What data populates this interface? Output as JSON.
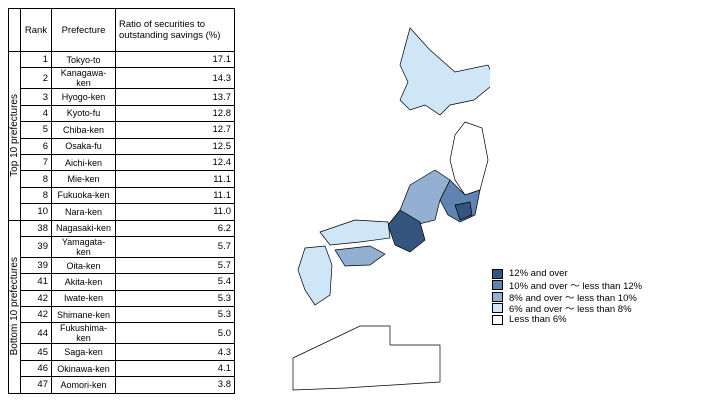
{
  "table": {
    "headers": [
      "Rank",
      "Prefecture",
      "Ratio of securities to outstanding savings (%)"
    ],
    "groups": [
      {
        "label": "Top 10 prefectures",
        "rows": [
          [
            1,
            "Tokyo-to",
            "17.1"
          ],
          [
            2,
            "Kanagawa-ken",
            "14.3"
          ],
          [
            3,
            "Hyogo-ken",
            "13.7"
          ],
          [
            4,
            "Kyoto-fu",
            "12.8"
          ],
          [
            5,
            "Chiba-ken",
            "12.7"
          ],
          [
            6,
            "Osaka-fu",
            "12.5"
          ],
          [
            7,
            "Aichi-ken",
            "12.4"
          ],
          [
            8,
            "Mie-ken",
            "11.1"
          ],
          [
            8,
            "Fukuoka-ken",
            "11.1"
          ],
          [
            10,
            "Nara-ken",
            "11.0"
          ]
        ]
      },
      {
        "label": "Bottom 10 prefectures",
        "rows": [
          [
            38,
            "Nagasaki-ken",
            "6.2"
          ],
          [
            39,
            "Yamagata-ken",
            "5.7"
          ],
          [
            39,
            "Oita-ken",
            "5.7"
          ],
          [
            41,
            "Akita-ken",
            "5.4"
          ],
          [
            42,
            "Iwate-ken",
            "5.3"
          ],
          [
            42,
            "Shimane-ken",
            "5.3"
          ],
          [
            44,
            "Fukushima-ken",
            "5.0"
          ],
          [
            45,
            "Saga-ken",
            "4.3"
          ],
          [
            46,
            "Okinawa-ken",
            "4.1"
          ],
          [
            47,
            "Aomori-ken",
            "3.8"
          ]
        ]
      }
    ]
  },
  "legend": [
    {
      "label": "12% and over",
      "color": "#34557e"
    },
    {
      "label": "10% and over ～ less than 12%",
      "color": "#5f84b3"
    },
    {
      "label": "8% and over ～ less than 10%",
      "color": "#93afd2"
    },
    {
      "label": "6% and over ～ less than 8%",
      "color": "#cfe6f6"
    },
    {
      "label": "Less than 6%",
      "color": "#ffffff"
    }
  ]
}
